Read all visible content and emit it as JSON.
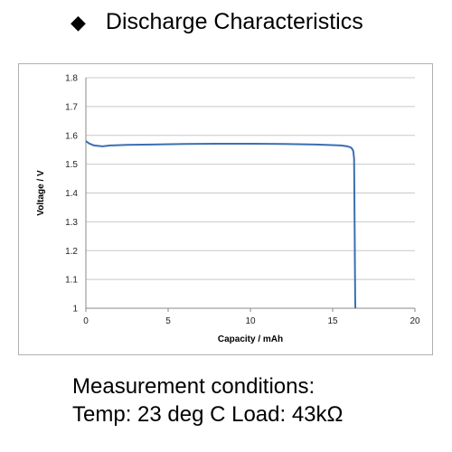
{
  "heading": {
    "bullet": "◆",
    "title": "Discharge Characteristics"
  },
  "conditions": {
    "line1": "Measurement conditions:",
    "line2": "Temp: 23 deg C  Load: 43kΩ"
  },
  "chart_data": {
    "type": "line",
    "title": "",
    "xlabel": "Capacity  /  mAh",
    "ylabel": "Voltage  /  V",
    "xlim": [
      0,
      20
    ],
    "ylim": [
      1.0,
      1.8
    ],
    "xticks": [
      0,
      5,
      10,
      15,
      20
    ],
    "yticks": [
      1.0,
      1.1,
      1.2,
      1.3,
      1.4,
      1.5,
      1.6,
      1.7,
      1.8
    ],
    "ytick_labels": [
      "1",
      "1.1",
      "1.2",
      "1.3",
      "1.4",
      "1.5",
      "1.6",
      "1.7",
      "1.8"
    ],
    "grid": "horizontal",
    "line_color": "#3a6fb0",
    "series": [
      {
        "x": [
          0,
          0.2,
          0.5,
          1.0,
          1.5,
          2.5,
          4,
          6,
          8,
          10,
          12,
          14,
          15.5,
          15.9,
          16.1,
          16.2,
          16.25,
          16.3,
          16.32,
          16.34,
          16.35,
          16.36,
          16.37,
          16.38
        ],
        "y": [
          1.58,
          1.572,
          1.565,
          1.562,
          1.565,
          1.567,
          1.568,
          1.57,
          1.571,
          1.571,
          1.57,
          1.568,
          1.565,
          1.562,
          1.558,
          1.552,
          1.545,
          1.52,
          1.4,
          1.25,
          1.15,
          1.08,
          1.03,
          1.0
        ]
      }
    ]
  }
}
